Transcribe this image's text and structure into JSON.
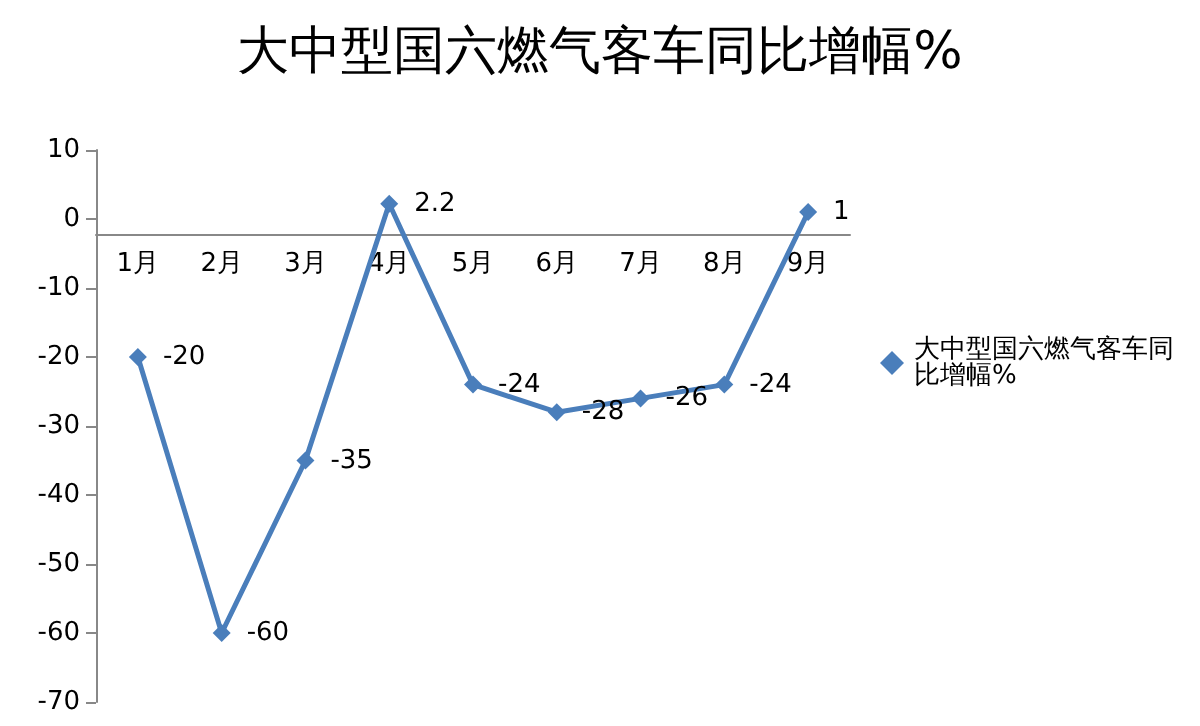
{
  "chart_data": {
    "type": "line",
    "title": "大中型国六燃气客车同比增幅%",
    "categories": [
      "1月",
      "2月",
      "3月",
      "4月",
      "5月",
      "6月",
      "7月",
      "8月",
      "9月"
    ],
    "series": [
      {
        "name": "大中型国六燃气客车同比增幅%",
        "color": "#4a7ebb",
        "values": [
          -20,
          -60,
          -35,
          2.2,
          -24,
          -28,
          -26,
          -24,
          1
        ]
      }
    ],
    "ylim": [
      -70,
      10
    ],
    "yticks": [
      -70,
      -60,
      -50,
      -40,
      -30,
      -20,
      -10,
      0,
      10
    ],
    "data_labels": true,
    "legend": "right",
    "grid": false,
    "marker": "diamond",
    "line_style": "solid"
  }
}
